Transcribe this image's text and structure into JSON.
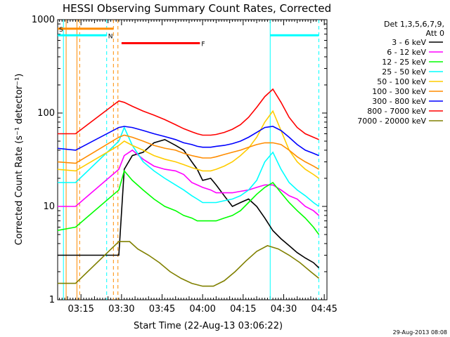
{
  "chart_data": {
    "type": "line",
    "title": "HESSI Observing Summary Count Rates, Corrected",
    "xlabel": "Start Time (22-Aug-13 03:06:22)",
    "ylabel": "Corrected Count Rate (s⁻¹ detector⁻¹)",
    "timestamp": "29-Aug-2013 08:08",
    "yscale": "log",
    "xlim": [
      "03:06:22",
      "04:46:00"
    ],
    "ylim": [
      1,
      1000
    ],
    "x_ticks": [
      "03:15",
      "03:30",
      "03:45",
      "04:00",
      "04:15",
      "04:30",
      "04:45"
    ],
    "y_ticks": [
      "1",
      "10",
      "100",
      "1000"
    ],
    "legend": {
      "placement": "right",
      "header": [
        "Det 1,3,5,6,7,9,",
        "Att 0"
      ]
    },
    "series": [
      {
        "name": "3 - 6 keV",
        "color": "#000000",
        "points": [
          [
            "03:06",
            3.0
          ],
          [
            "03:13",
            3.0
          ],
          [
            "03:29",
            3.0
          ],
          [
            "03:31",
            25
          ],
          [
            "03:34",
            35
          ],
          [
            "03:38",
            38
          ],
          [
            "03:42",
            48
          ],
          [
            "03:46",
            52
          ],
          [
            "03:50",
            45
          ],
          [
            "03:53",
            40
          ],
          [
            "03:56",
            30
          ],
          [
            "03:58",
            25
          ],
          [
            "04:00",
            19
          ],
          [
            "04:03",
            20
          ],
          [
            "04:05",
            17
          ],
          [
            "04:08",
            13
          ],
          [
            "04:11",
            10
          ],
          [
            "04:14",
            11
          ],
          [
            "04:17",
            12
          ],
          [
            "04:20",
            10
          ],
          [
            "04:23",
            7.5
          ],
          [
            "04:26",
            5.5
          ],
          [
            "04:29",
            4.5
          ],
          [
            "04:32",
            3.8
          ],
          [
            "04:35",
            3.2
          ],
          [
            "04:38",
            2.8
          ],
          [
            "04:41",
            2.5
          ],
          [
            "04:43",
            2.2
          ]
        ]
      },
      {
        "name": "6 - 12 keV",
        "color": "#ff00ff",
        "points": [
          [
            "03:06",
            10
          ],
          [
            "03:13",
            10
          ],
          [
            "03:29",
            25
          ],
          [
            "03:31",
            35
          ],
          [
            "03:34",
            40
          ],
          [
            "03:38",
            32
          ],
          [
            "03:42",
            27
          ],
          [
            "03:46",
            25
          ],
          [
            "03:50",
            24
          ],
          [
            "03:53",
            22
          ],
          [
            "03:56",
            18
          ],
          [
            "03:58",
            17
          ],
          [
            "04:00",
            16
          ],
          [
            "04:03",
            15
          ],
          [
            "04:05",
            14
          ],
          [
            "04:08",
            14
          ],
          [
            "04:11",
            14
          ],
          [
            "04:14",
            14.5
          ],
          [
            "04:17",
            15
          ],
          [
            "04:20",
            16
          ],
          [
            "04:23",
            17
          ],
          [
            "04:26",
            17
          ],
          [
            "04:29",
            15
          ],
          [
            "04:32",
            13
          ],
          [
            "04:35",
            12
          ],
          [
            "04:38",
            10
          ],
          [
            "04:41",
            9
          ],
          [
            "04:43",
            8
          ]
        ]
      },
      {
        "name": "12 - 25 keV",
        "color": "#00ff00",
        "points": [
          [
            "03:06",
            5.5
          ],
          [
            "03:13",
            6
          ],
          [
            "03:29",
            15
          ],
          [
            "03:31",
            24
          ],
          [
            "03:34",
            19
          ],
          [
            "03:38",
            15
          ],
          [
            "03:42",
            12
          ],
          [
            "03:46",
            10
          ],
          [
            "03:50",
            9
          ],
          [
            "03:53",
            8
          ],
          [
            "03:56",
            7.5
          ],
          [
            "03:58",
            7
          ],
          [
            "04:00",
            7
          ],
          [
            "04:03",
            7
          ],
          [
            "04:05",
            7
          ],
          [
            "04:08",
            7.5
          ],
          [
            "04:11",
            8
          ],
          [
            "04:14",
            9
          ],
          [
            "04:17",
            11
          ],
          [
            "04:20",
            13.5
          ],
          [
            "04:23",
            16
          ],
          [
            "04:26",
            18
          ],
          [
            "04:29",
            14
          ],
          [
            "04:32",
            11
          ],
          [
            "04:35",
            9
          ],
          [
            "04:38",
            7.5
          ],
          [
            "04:41",
            6
          ],
          [
            "04:43",
            5
          ]
        ]
      },
      {
        "name": "25 - 50 keV",
        "color": "#00ffff",
        "points": [
          [
            "03:06",
            18
          ],
          [
            "03:13",
            18
          ],
          [
            "03:29",
            50
          ],
          [
            "03:31",
            70
          ],
          [
            "03:34",
            45
          ],
          [
            "03:38",
            30
          ],
          [
            "03:42",
            24
          ],
          [
            "03:46",
            20
          ],
          [
            "03:50",
            17
          ],
          [
            "03:53",
            15
          ],
          [
            "03:56",
            13
          ],
          [
            "03:58",
            12
          ],
          [
            "04:00",
            11
          ],
          [
            "04:03",
            11
          ],
          [
            "04:05",
            11
          ],
          [
            "04:08",
            11.5
          ],
          [
            "04:11",
            12
          ],
          [
            "04:14",
            13
          ],
          [
            "04:17",
            15
          ],
          [
            "04:20",
            19
          ],
          [
            "04:23",
            30
          ],
          [
            "04:26",
            38
          ],
          [
            "04:29",
            25
          ],
          [
            "04:32",
            18
          ],
          [
            "04:35",
            15
          ],
          [
            "04:38",
            13
          ],
          [
            "04:41",
            11
          ],
          [
            "04:43",
            10
          ]
        ]
      },
      {
        "name": "50 - 100 keV",
        "color": "#ffcc00",
        "points": [
          [
            "03:06",
            25
          ],
          [
            "03:13",
            24
          ],
          [
            "03:29",
            45
          ],
          [
            "03:31",
            50
          ],
          [
            "03:34",
            45
          ],
          [
            "03:38",
            40
          ],
          [
            "03:42",
            35
          ],
          [
            "03:46",
            32
          ],
          [
            "03:50",
            30
          ],
          [
            "03:53",
            28
          ],
          [
            "03:56",
            26
          ],
          [
            "03:58",
            25
          ],
          [
            "04:00",
            24
          ],
          [
            "04:03",
            24
          ],
          [
            "04:05",
            25
          ],
          [
            "04:08",
            27
          ],
          [
            "04:11",
            30
          ],
          [
            "04:14",
            35
          ],
          [
            "04:17",
            42
          ],
          [
            "04:20",
            55
          ],
          [
            "04:23",
            80
          ],
          [
            "04:26",
            105
          ],
          [
            "04:29",
            65
          ],
          [
            "04:32",
            40
          ],
          [
            "04:35",
            30
          ],
          [
            "04:38",
            25
          ],
          [
            "04:41",
            22
          ],
          [
            "04:43",
            20
          ]
        ]
      },
      {
        "name": "100 - 300 keV",
        "color": "#ff8c00",
        "points": [
          [
            "03:06",
            30
          ],
          [
            "03:13",
            29
          ],
          [
            "03:29",
            55
          ],
          [
            "03:31",
            58
          ],
          [
            "03:34",
            55
          ],
          [
            "03:38",
            50
          ],
          [
            "03:42",
            45
          ],
          [
            "03:46",
            42
          ],
          [
            "03:50",
            40
          ],
          [
            "03:53",
            37
          ],
          [
            "03:56",
            35
          ],
          [
            "03:58",
            34
          ],
          [
            "04:00",
            33
          ],
          [
            "04:03",
            33
          ],
          [
            "04:05",
            34
          ],
          [
            "04:08",
            36
          ],
          [
            "04:11",
            38
          ],
          [
            "04:14",
            40
          ],
          [
            "04:17",
            43
          ],
          [
            "04:20",
            46
          ],
          [
            "04:23",
            48
          ],
          [
            "04:26",
            48
          ],
          [
            "04:29",
            46
          ],
          [
            "04:32",
            40
          ],
          [
            "04:35",
            34
          ],
          [
            "04:38",
            30
          ],
          [
            "04:41",
            27
          ],
          [
            "04:43",
            25
          ]
        ]
      },
      {
        "name": "300 - 800 keV",
        "color": "#0000ff",
        "points": [
          [
            "03:06",
            42
          ],
          [
            "03:13",
            40
          ],
          [
            "03:29",
            70
          ],
          [
            "03:31",
            72
          ],
          [
            "03:34",
            70
          ],
          [
            "03:38",
            65
          ],
          [
            "03:42",
            60
          ],
          [
            "03:46",
            56
          ],
          [
            "03:50",
            52
          ],
          [
            "03:53",
            48
          ],
          [
            "03:56",
            46
          ],
          [
            "03:58",
            44
          ],
          [
            "04:00",
            43
          ],
          [
            "04:03",
            43
          ],
          [
            "04:05",
            44
          ],
          [
            "04:08",
            45
          ],
          [
            "04:11",
            47
          ],
          [
            "04:14",
            50
          ],
          [
            "04:17",
            55
          ],
          [
            "04:20",
            62
          ],
          [
            "04:23",
            70
          ],
          [
            "04:26",
            72
          ],
          [
            "04:29",
            65
          ],
          [
            "04:32",
            55
          ],
          [
            "04:35",
            46
          ],
          [
            "04:38",
            40
          ],
          [
            "04:41",
            37
          ],
          [
            "04:43",
            35
          ]
        ]
      },
      {
        "name": "800 - 7000 keV",
        "color": "#ff0000",
        "points": [
          [
            "03:06",
            60
          ],
          [
            "03:13",
            60
          ],
          [
            "03:29",
            135
          ],
          [
            "03:31",
            130
          ],
          [
            "03:34",
            118
          ],
          [
            "03:38",
            105
          ],
          [
            "03:42",
            95
          ],
          [
            "03:46",
            85
          ],
          [
            "03:50",
            75
          ],
          [
            "03:53",
            68
          ],
          [
            "03:56",
            63
          ],
          [
            "03:58",
            60
          ],
          [
            "04:00",
            58
          ],
          [
            "04:03",
            58
          ],
          [
            "04:05",
            59
          ],
          [
            "04:08",
            62
          ],
          [
            "04:11",
            67
          ],
          [
            "04:14",
            75
          ],
          [
            "04:17",
            90
          ],
          [
            "04:20",
            115
          ],
          [
            "04:23",
            150
          ],
          [
            "04:26",
            180
          ],
          [
            "04:29",
            130
          ],
          [
            "04:32",
            90
          ],
          [
            "04:35",
            70
          ],
          [
            "04:38",
            60
          ],
          [
            "04:41",
            55
          ],
          [
            "04:43",
            52
          ]
        ]
      },
      {
        "name": "7000 - 20000 keV",
        "color": "#808000",
        "points": [
          [
            "03:06",
            1.5
          ],
          [
            "03:13",
            1.5
          ],
          [
            "03:29",
            4.2
          ],
          [
            "03:33",
            4.2
          ],
          [
            "03:36",
            3.5
          ],
          [
            "03:40",
            3.0
          ],
          [
            "03:44",
            2.5
          ],
          [
            "03:48",
            2.0
          ],
          [
            "03:52",
            1.7
          ],
          [
            "03:56",
            1.5
          ],
          [
            "04:00",
            1.4
          ],
          [
            "04:04",
            1.4
          ],
          [
            "04:08",
            1.6
          ],
          [
            "04:12",
            2.0
          ],
          [
            "04:16",
            2.6
          ],
          [
            "04:20",
            3.3
          ],
          [
            "04:24",
            3.8
          ],
          [
            "04:28",
            3.5
          ],
          [
            "04:32",
            3.0
          ],
          [
            "04:36",
            2.5
          ],
          [
            "04:40",
            2.0
          ],
          [
            "04:43",
            1.7
          ]
        ]
      }
    ],
    "flags": {
      "attenuator_lines": [
        {
          "label": "S",
          "color": "#ff8c00",
          "start": "03:06:22",
          "end": "03:27:00",
          "level": 800
        },
        {
          "label": "N",
          "color": "#00ffff",
          "start": "03:06:22",
          "end": "03:24:30",
          "level": 680
        },
        {
          "label": "F",
          "color": "#ff0000",
          "start": "03:30:00",
          "end": "03:59:00",
          "level": 560
        },
        {
          "label": "",
          "color": "#00ffff",
          "start": "04:25:00",
          "end": "04:43:00",
          "level": 680
        }
      ],
      "vlines": [
        {
          "time": "03:08:30",
          "color": "#00ffff",
          "style": "solid"
        },
        {
          "time": "03:09:30",
          "color": "#ff8c00",
          "style": "solid"
        },
        {
          "time": "03:13:30",
          "color": "#ff8c00",
          "style": "solid"
        },
        {
          "time": "03:14:30",
          "color": "#ff8c00",
          "style": "dashed"
        },
        {
          "time": "03:24:30",
          "color": "#00ffff",
          "style": "dashed"
        },
        {
          "time": "03:27:00",
          "color": "#ff8c00",
          "style": "dashed"
        },
        {
          "time": "03:28:40",
          "color": "#ff8c00",
          "style": "dashed"
        },
        {
          "time": "04:25:00",
          "color": "#00ffff",
          "style": "solid"
        },
        {
          "time": "04:43:00",
          "color": "#00ffff",
          "style": "dashed"
        }
      ]
    }
  }
}
